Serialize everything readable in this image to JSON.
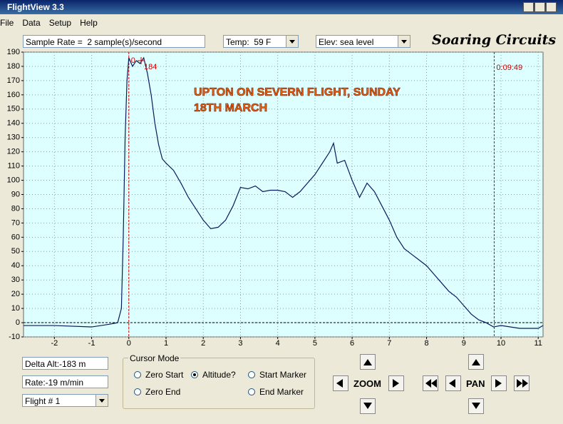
{
  "window": {
    "title": "FlightView 3.3",
    "menu": [
      "File",
      "Data",
      "Setup",
      "Help"
    ]
  },
  "toolbar": {
    "sample_rate": "Sample Rate =  2 sample(s)/second",
    "temp": "Temp:  59 F",
    "elev": "Elev: sea level",
    "brand": "Soaring Circuits"
  },
  "chart_data": {
    "type": "line",
    "title": [
      "UPTON ON SEVERN FLIGHT, SUNDAY",
      "18TH MARCH"
    ],
    "color": "#0a1a5a",
    "grid": true,
    "zero_line": true,
    "xlim": [
      -2.83,
      11.13
    ],
    "ylim": [
      -10,
      190
    ],
    "xticks": [
      -2,
      -1,
      0,
      1,
      2,
      3,
      4,
      5,
      6,
      7,
      8,
      9,
      10,
      11
    ],
    "yticks": [
      -10,
      0,
      10,
      20,
      30,
      40,
      50,
      60,
      70,
      80,
      90,
      100,
      110,
      120,
      130,
      140,
      150,
      160,
      170,
      180,
      190
    ],
    "x": [
      -2.83,
      -2,
      -1,
      -0.5,
      -0.3,
      -0.2,
      -0.15,
      -0.1,
      -0.05,
      0,
      0.1,
      0.2,
      0.3,
      0.4,
      0.5,
      0.6,
      0.7,
      0.8,
      0.9,
      1.0,
      1.2,
      1.4,
      1.6,
      1.8,
      2.0,
      2.2,
      2.4,
      2.6,
      2.8,
      3.0,
      3.2,
      3.4,
      3.6,
      3.8,
      4.0,
      4.2,
      4.4,
      4.6,
      4.8,
      5.0,
      5.2,
      5.4,
      5.5,
      5.6,
      5.8,
      6.0,
      6.2,
      6.4,
      6.6,
      6.8,
      7.0,
      7.2,
      7.4,
      7.6,
      7.8,
      8.0,
      8.2,
      8.4,
      8.6,
      8.8,
      9.0,
      9.2,
      9.4,
      9.6,
      9.8,
      10,
      10.5,
      11,
      11.13
    ],
    "values": [
      -2,
      -2,
      -3,
      -1,
      0,
      10,
      60,
      130,
      170,
      186,
      180,
      184,
      182,
      186,
      175,
      160,
      140,
      125,
      115,
      112,
      107,
      98,
      88,
      80,
      72,
      66,
      67,
      72,
      82,
      95,
      94,
      96,
      92,
      93,
      93,
      92,
      88,
      92,
      98,
      104,
      112,
      120,
      126,
      112,
      114,
      100,
      88,
      98,
      92,
      82,
      72,
      60,
      52,
      48,
      44,
      40,
      34,
      28,
      22,
      18,
      12,
      6,
      2,
      0,
      -3,
      -2,
      -4,
      -4,
      -2
    ],
    "markers": [
      {
        "x": 0,
        "label": "0"
      },
      {
        "x": 9.817,
        "label": "0:09:49"
      }
    ],
    "cursor": {
      "x": 0.33,
      "y": 184,
      "label": "184"
    }
  },
  "status": {
    "delta_alt": "Delta Alt:-183 m",
    "rate": "Rate:-19 m/min",
    "flight": "Flight # 1"
  },
  "cursor_mode": {
    "title": "Cursor Mode",
    "options": [
      {
        "label": "Zero Start",
        "checked": false
      },
      {
        "label": "Altitude?",
        "checked": true
      },
      {
        "label": "Start Marker",
        "checked": false
      },
      {
        "label": "Zero End",
        "checked": false
      },
      {
        "label": "End Marker",
        "checked": false
      }
    ]
  },
  "zoom": "ZOOM",
  "pan": "PAN"
}
